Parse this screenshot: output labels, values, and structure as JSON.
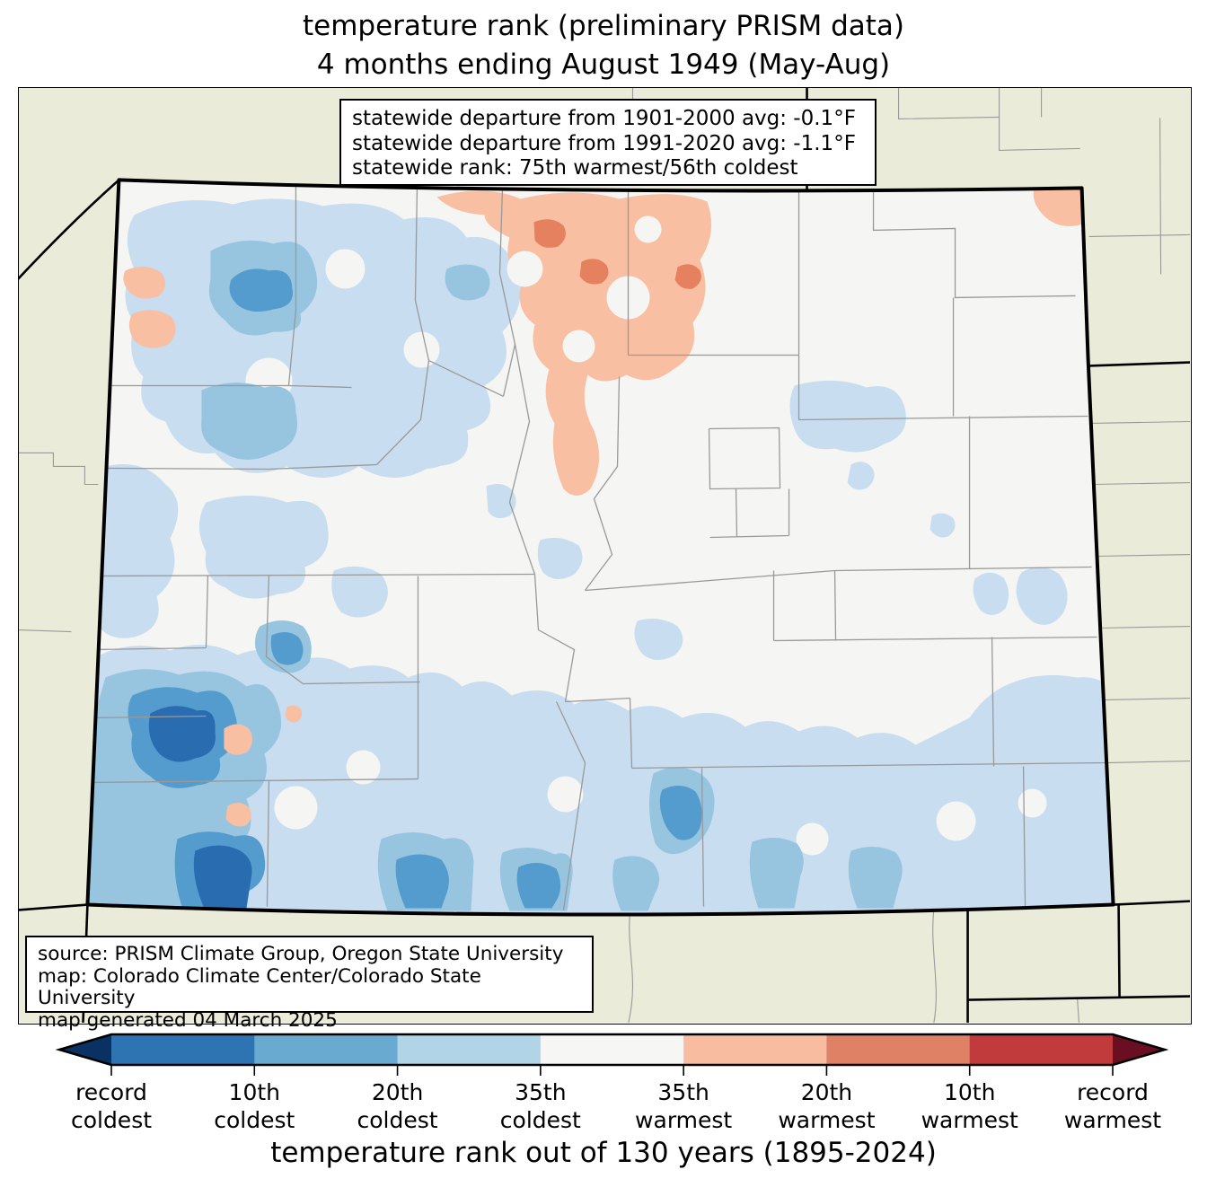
{
  "title": {
    "line1": "temperature rank (preliminary PRISM data)",
    "line2": "4 months ending August 1949 (May-Aug)"
  },
  "stats_box": {
    "line1": "statewide departure from 1901-2000 avg: -0.1°F",
    "line2": "statewide departure from 1991-2020 avg: -1.1°F",
    "line3": "statewide rank: 75th warmest/56th coldest"
  },
  "source_box": {
    "line1": "source: PRISM Climate Group, Oregon State University",
    "line2": "map: Colorado Climate Center/Colorado State University",
    "line3": "map generated 04 March 2025"
  },
  "colorbar": {
    "caption": "temperature rank out of 130 years (1895-2024)",
    "labels": [
      {
        "l1": "record",
        "l2": "coldest"
      },
      {
        "l1": "10th",
        "l2": "coldest"
      },
      {
        "l1": "20th",
        "l2": "coldest"
      },
      {
        "l1": "35th",
        "l2": "coldest"
      },
      {
        "l1": "35th",
        "l2": "warmest"
      },
      {
        "l1": "20th",
        "l2": "warmest"
      },
      {
        "l1": "10th",
        "l2": "warmest"
      },
      {
        "l1": "record",
        "l2": "warmest"
      }
    ],
    "segment_colors": [
      "#2e74b3",
      "#68aad0",
      "#b2d4e7",
      "#f6f6f5",
      "#f8bda1",
      "#df8165",
      "#c23b3c"
    ],
    "arrow_left_color": "#0a3161",
    "arrow_right_color": "#6a0e24"
  },
  "map": {
    "region": "Colorado",
    "palette": {
      "outside": "#ebebd9",
      "inside": "#f5f5f4",
      "county_line": "#999999",
      "state_border": "#000000",
      "blue_light": "#c8ddef",
      "blue_medium": "#97c4df",
      "blue_dark": "#549ccd",
      "blue_darkest": "#2a6cb0",
      "orange_light": "#f8bfa3",
      "orange_medium": "#e5815f"
    }
  },
  "chart_data": {
    "type": "heatmap",
    "title": "temperature rank (preliminary PRISM data), 4 months ending August 1949 (May-Aug)",
    "legend_entries": [
      "record coldest",
      "10th coldest",
      "20th coldest",
      "35th coldest",
      "35th warmest",
      "20th warmest",
      "10th warmest",
      "record warmest"
    ],
    "statewide_departure_1901_2000_F": -0.1,
    "statewide_departure_1991_2020_F": -1.1,
    "statewide_rank": "75th warmest/56th coldest",
    "rank_period_years": 130,
    "rank_period": "1895-2024"
  }
}
